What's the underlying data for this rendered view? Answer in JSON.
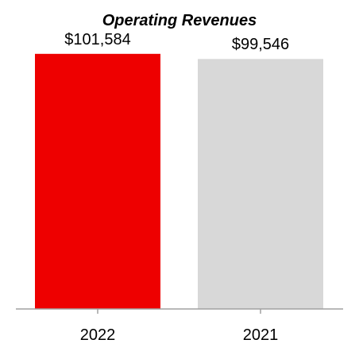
{
  "chart_data": {
    "type": "bar",
    "title": "Operating Revenues",
    "categories": [
      "2022",
      "2021"
    ],
    "values": [
      101584,
      99546
    ],
    "value_labels": [
      "$101,584",
      "$99,546"
    ],
    "colors": [
      "#ee0000",
      "#d8d8d8"
    ],
    "axis_color": "#a0a0a0",
    "ylim": [
      0,
      105000
    ],
    "grid": false,
    "legend": "none"
  }
}
